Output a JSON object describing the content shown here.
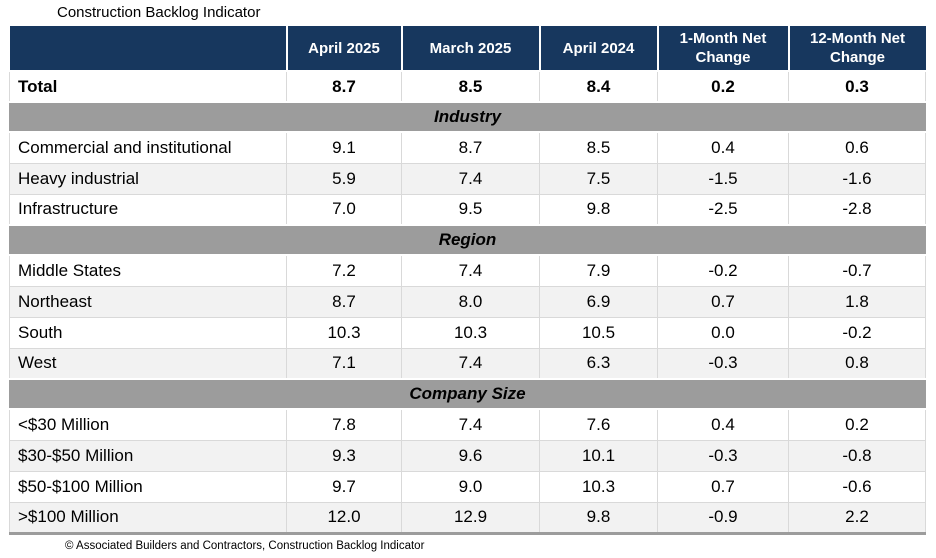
{
  "colors": {
    "header_bg": "#17375E",
    "section_band_bg": "#9C9C9C",
    "stripe_bg": "#F2F2F2",
    "header_text": "#FFFFFF",
    "body_text": "#000000",
    "grid_line": "#D9D9D9"
  },
  "chart_data": {
    "type": "table",
    "title": "Construction Backlog Indicator",
    "source": "© Associated Builders and Contractors, Construction Backlog Indicator",
    "columns": [
      "",
      "April 2025",
      "March 2025",
      "April 2024",
      "1-Month Net Change",
      "12-Month Net Change"
    ],
    "total_row": {
      "label": "Total",
      "values": [
        "8.7",
        "8.5",
        "8.4",
        "0.2",
        "0.3"
      ]
    },
    "sections": [
      {
        "name": "Industry",
        "rows": [
          {
            "label": "Commercial and institutional",
            "values": [
              "9.1",
              "8.7",
              "8.5",
              "0.4",
              "0.6"
            ]
          },
          {
            "label": "Heavy industrial",
            "values": [
              "5.9",
              "7.4",
              "7.5",
              "-1.5",
              "-1.6"
            ]
          },
          {
            "label": "Infrastructure",
            "values": [
              "7.0",
              "9.5",
              "9.8",
              "-2.5",
              "-2.8"
            ]
          }
        ]
      },
      {
        "name": "Region",
        "rows": [
          {
            "label": "Middle States",
            "values": [
              "7.2",
              "7.4",
              "7.9",
              "-0.2",
              "-0.7"
            ]
          },
          {
            "label": "Northeast",
            "values": [
              "8.7",
              "8.0",
              "6.9",
              "0.7",
              "1.8"
            ]
          },
          {
            "label": "South",
            "values": [
              "10.3",
              "10.3",
              "10.5",
              "0.0",
              "-0.2"
            ]
          },
          {
            "label": "West",
            "values": [
              "7.1",
              "7.4",
              "6.3",
              "-0.3",
              "0.8"
            ]
          }
        ]
      },
      {
        "name": "Company Size",
        "rows": [
          {
            "label": "<$30 Million",
            "values": [
              "7.8",
              "7.4",
              "7.6",
              "0.4",
              "0.2"
            ]
          },
          {
            "label": "$30-$50 Million",
            "values": [
              "9.3",
              "9.6",
              "10.1",
              "-0.3",
              "-0.8"
            ]
          },
          {
            "label": "$50-$100 Million",
            "values": [
              "9.7",
              "9.0",
              "10.3",
              "0.7",
              "-0.6"
            ]
          },
          {
            "label": ">$100 Million",
            "values": [
              "12.0",
              "12.9",
              "9.8",
              "-0.9",
              "2.2"
            ]
          }
        ]
      }
    ]
  }
}
